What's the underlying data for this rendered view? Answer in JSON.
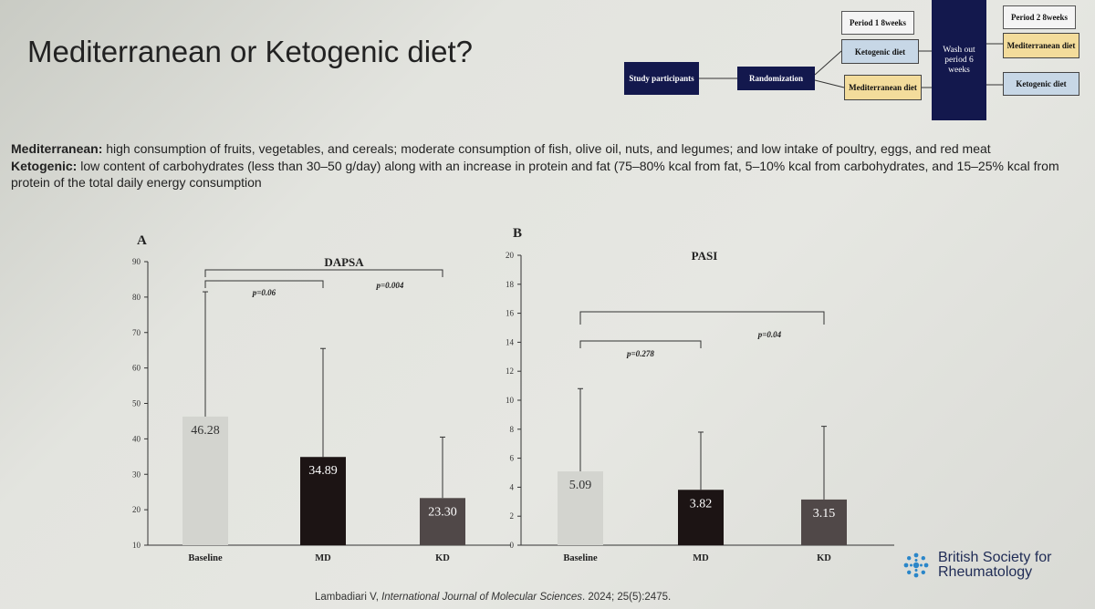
{
  "slide": {
    "title": "Mediterranean or Ketogenic diet?",
    "desc_med_label": "Mediterranean:",
    "desc_med_text": " high consumption of fruits, vegetables, and cereals; moderate consumption of fish, olive oil, nuts, and legumes; and low intake of poultry, eggs, and red meat",
    "desc_keto_label": "Ketogenic:",
    "desc_keto_text": "  low content of carbohydrates (less than 30–50 g/day) along with an increase in protein and fat (75–80% kcal from fat, 5–10% kcal from carbohydrates, and 15–25% kcal from protein of the total daily energy consumption",
    "reference_pre": "Lambadiari V, ",
    "reference_journal": "International Journal of Molecular Sciences",
    "reference_post": ". 2024; 25(5):2475.",
    "logo_line1": "British Society for",
    "logo_line2": "Rheumatology"
  },
  "flow": {
    "study": "Study participants",
    "randomization": "Randomization",
    "period1": "Period 1 8weeks",
    "keto1": "Ketogenic diet",
    "med1": "Mediterranean diet",
    "washout": "Wash out period 6 weeks",
    "period2": "Period 2 8weeks",
    "med2": "Mediterranean diet",
    "keto2": "Ketogenic diet",
    "colors": {
      "navy": "#13184d",
      "lightblue": "#c7d7e6",
      "yellow": "#f3dc9b"
    }
  },
  "chart_data": [
    {
      "type": "bar",
      "panel": "A",
      "title": "DAPSA",
      "categories": [
        "Baseline",
        "MD",
        "KD"
      ],
      "values": [
        46.28,
        34.89,
        23.3
      ],
      "labels": [
        "46.28",
        "34.89",
        "23.30"
      ],
      "error_upper": [
        81.5,
        65.5,
        40.5
      ],
      "colors": [
        "#d3d4cf",
        "#1c1414",
        "#504848"
      ],
      "label_colors": [
        "#333333",
        "#ffffff",
        "#ffffff"
      ],
      "ylim": [
        10,
        90
      ],
      "yticks": [
        "10",
        "20",
        "30",
        "40",
        "50",
        "60",
        "70",
        "80",
        "90"
      ],
      "annotations": [
        {
          "text": "p=0.06",
          "from": "Baseline",
          "to": "MD"
        },
        {
          "text": "p=0.004",
          "from": "Baseline",
          "to": "KD"
        }
      ]
    },
    {
      "type": "bar",
      "panel": "B",
      "title": "PASI",
      "categories": [
        "Baseline",
        "MD",
        "KD"
      ],
      "values": [
        5.09,
        3.82,
        3.15
      ],
      "labels": [
        "5.09",
        "3.82",
        "3.15"
      ],
      "error_upper": [
        10.8,
        7.8,
        8.2
      ],
      "colors": [
        "#d3d4cf",
        "#1c1414",
        "#504848"
      ],
      "label_colors": [
        "#333333",
        "#ffffff",
        "#ffffff"
      ],
      "ylim": [
        0,
        20
      ],
      "yticks": [
        "0",
        "2",
        "4",
        "6",
        "8",
        "10",
        "12",
        "14",
        "16",
        "18",
        "20"
      ],
      "annotations": [
        {
          "text": "p=0.278",
          "from": "Baseline",
          "to": "MD"
        },
        {
          "text": "p=0.04",
          "from": "Baseline",
          "to": "KD"
        }
      ]
    }
  ]
}
